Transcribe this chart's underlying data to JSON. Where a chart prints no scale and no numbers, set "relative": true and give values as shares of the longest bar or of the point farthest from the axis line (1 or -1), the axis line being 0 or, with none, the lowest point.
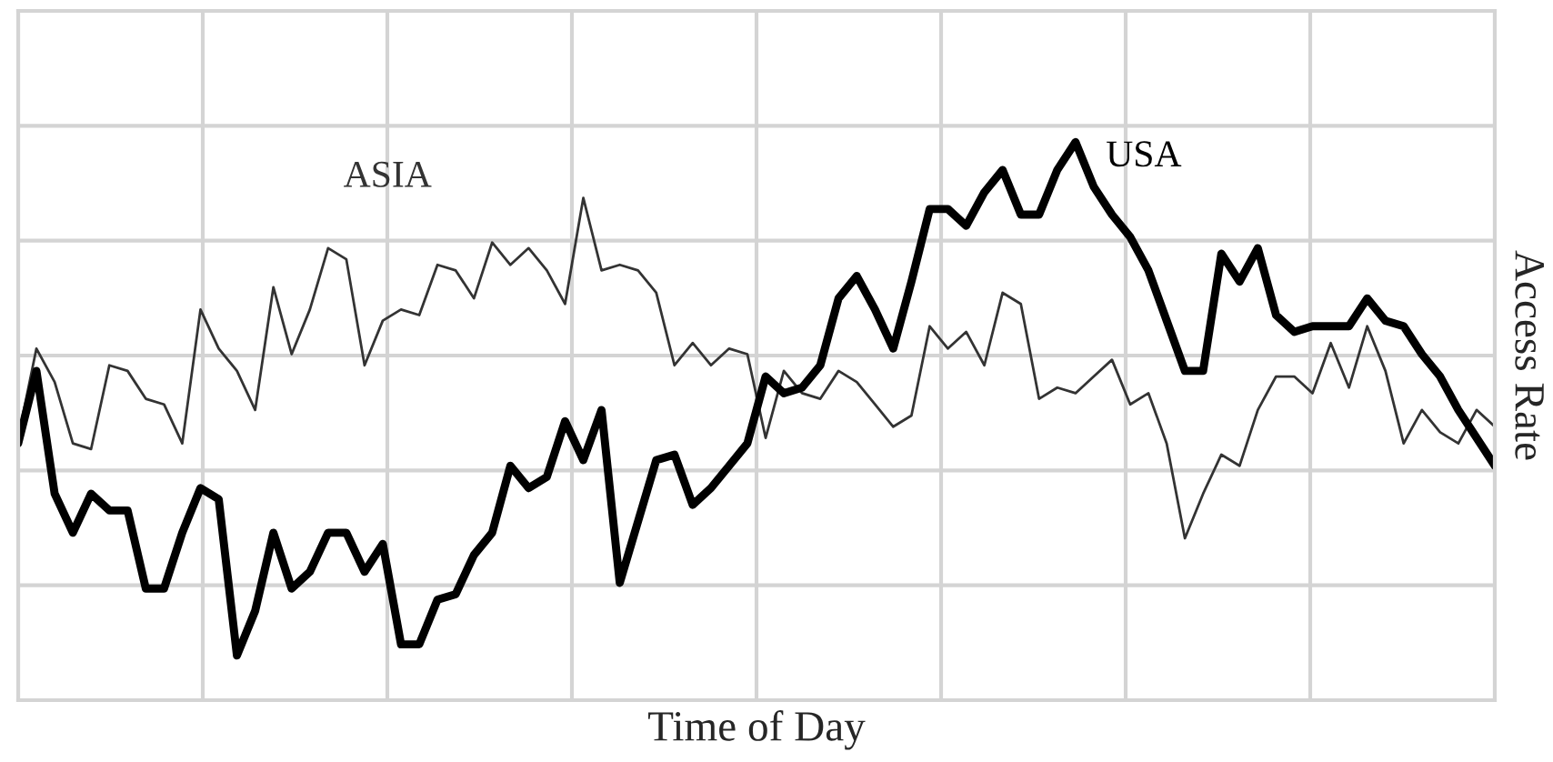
{
  "chart_data": {
    "type": "line",
    "relative": true,
    "xlabel": "Time of Day",
    "ylabel": "Access Rate",
    "grid": true,
    "tick_labels": false,
    "categories": [
      null,
      null,
      null,
      null,
      null,
      null,
      null,
      null,
      null,
      null,
      null,
      null,
      null,
      null,
      null,
      null,
      null,
      null,
      null,
      null,
      null,
      null,
      null,
      null,
      null,
      null,
      null,
      null,
      null,
      null,
      null,
      null,
      null,
      null,
      null,
      null,
      null,
      null,
      null,
      null,
      null,
      null,
      null,
      null,
      null,
      null,
      null,
      null,
      null,
      null,
      null,
      null,
      null,
      null,
      null,
      null,
      null,
      null,
      null,
      null,
      null,
      null,
      null,
      null,
      null,
      null,
      null,
      null,
      null,
      null,
      null,
      null,
      null,
      null,
      null,
      null,
      null,
      null,
      null,
      null,
      null,
      null
    ],
    "series": [
      {
        "name": "ASIA",
        "color": "#333333",
        "values": [
          0.47,
          0.63,
          0.57,
          0.46,
          0.45,
          0.6,
          0.59,
          0.54,
          0.53,
          0.46,
          0.7,
          0.63,
          0.59,
          0.52,
          0.74,
          0.62,
          0.7,
          0.81,
          0.79,
          0.6,
          0.68,
          0.7,
          0.69,
          0.78,
          0.77,
          0.72,
          0.82,
          0.78,
          0.81,
          0.77,
          0.71,
          0.9,
          0.77,
          0.78,
          0.77,
          0.73,
          0.6,
          0.64,
          0.6,
          0.63,
          0.62,
          0.47,
          0.59,
          0.55,
          0.54,
          0.59,
          0.57,
          0.53,
          0.49,
          0.51,
          0.67,
          0.63,
          0.66,
          0.6,
          0.73,
          0.71,
          0.54,
          0.56,
          0.55,
          0.58,
          0.61,
          0.53,
          0.55,
          0.46,
          0.29,
          0.37,
          0.44,
          0.42,
          0.52,
          0.58,
          0.58,
          0.55,
          0.64,
          0.56,
          0.67,
          0.59,
          0.46,
          0.52,
          0.48,
          0.46,
          0.52,
          0.49
        ]
      },
      {
        "name": "USA",
        "color": "#000000",
        "values": [
          0.46,
          0.59,
          0.37,
          0.3,
          0.37,
          0.34,
          0.34,
          0.2,
          0.2,
          0.3,
          0.38,
          0.36,
          0.08,
          0.16,
          0.3,
          0.2,
          0.23,
          0.3,
          0.3,
          0.23,
          0.28,
          0.1,
          0.1,
          0.18,
          0.19,
          0.26,
          0.3,
          0.42,
          0.38,
          0.4,
          0.5,
          0.43,
          0.52,
          0.21,
          0.32,
          0.43,
          0.44,
          0.35,
          0.38,
          0.42,
          0.46,
          0.58,
          0.55,
          0.56,
          0.6,
          0.72,
          0.76,
          0.7,
          0.63,
          0.75,
          0.88,
          0.88,
          0.85,
          0.91,
          0.95,
          0.87,
          0.87,
          0.95,
          1.0,
          0.92,
          0.87,
          0.83,
          0.77,
          0.68,
          0.59,
          0.59,
          0.8,
          0.75,
          0.81,
          0.69,
          0.66,
          0.67,
          0.67,
          0.67,
          0.72,
          0.68,
          0.67,
          0.62,
          0.58,
          0.52,
          0.47,
          0.42
        ]
      }
    ]
  }
}
